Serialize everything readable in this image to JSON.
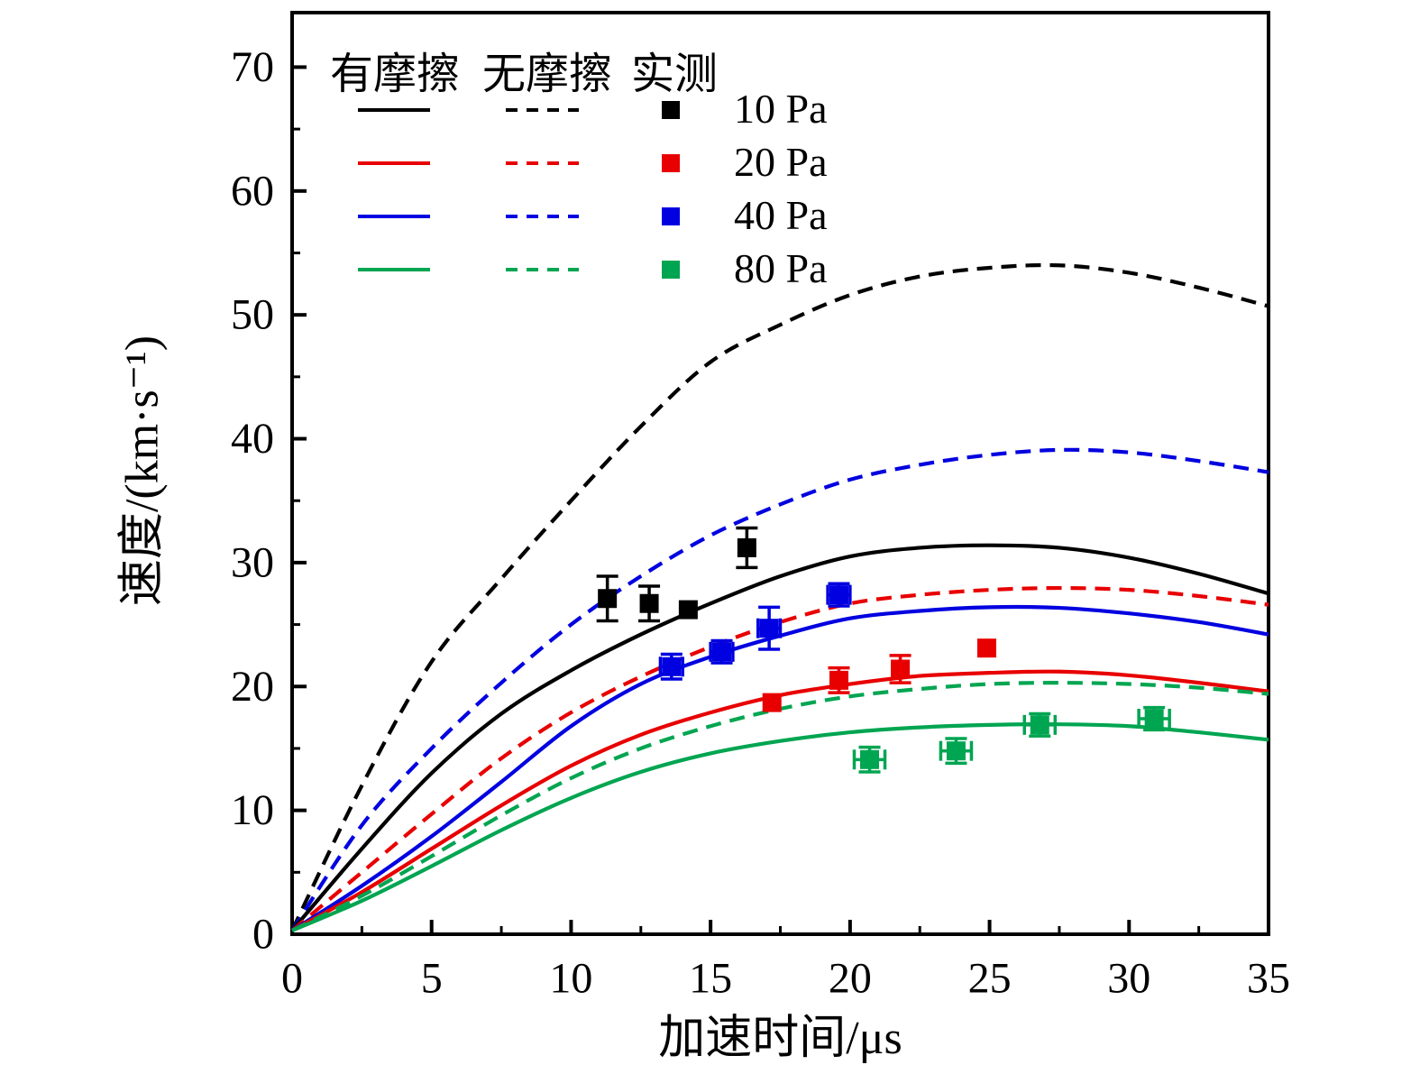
{
  "chart_data": {
    "type": "line",
    "title": "",
    "xlabel": "加速时间/μs",
    "ylabel": "速度/(km·s⁻¹)",
    "xlim": [
      0,
      35
    ],
    "ylim": [
      0,
      74.4
    ],
    "xticks": [
      0,
      5,
      10,
      15,
      20,
      25,
      30,
      35
    ],
    "yticks": [
      0,
      10,
      20,
      30,
      40,
      50,
      60,
      70
    ],
    "xminor_step": 2.5,
    "yminor_step": 5,
    "grid": false,
    "tick_direction": "in",
    "legend": {
      "position": "top-left-inside",
      "headers": [
        "有摩擦",
        "无摩擦",
        "实测"
      ],
      "entries": [
        {
          "label": "10 Pa",
          "color": "#000000"
        },
        {
          "label": "20 Pa",
          "color": "#e80000"
        },
        {
          "label": "40 Pa",
          "color": "#0000e0"
        },
        {
          "label": "80 Pa",
          "color": "#00a551"
        }
      ]
    },
    "t_samples": [
      0,
      2.5,
      5,
      7.5,
      10,
      12.5,
      15,
      17.5,
      20,
      22.5,
      25,
      27.5,
      30,
      32.5,
      35
    ],
    "series": [
      {
        "id": "10pa-nofriction",
        "pressure": "10 Pa",
        "friction": false,
        "style": "dashed",
        "color": "#000000",
        "values": [
          0.3,
          12.0,
          22.0,
          28.7,
          35.0,
          41.0,
          46.2,
          49.2,
          51.6,
          53.1,
          53.8,
          54.0,
          53.4,
          52.2,
          50.7
        ]
      },
      {
        "id": "40pa-nofriction",
        "pressure": "40 Pa",
        "friction": false,
        "style": "dashed",
        "color": "#0000e0",
        "values": [
          0.3,
          8.8,
          15.0,
          20.3,
          25.0,
          28.9,
          32.2,
          34.7,
          36.7,
          37.9,
          38.7,
          39.1,
          38.9,
          38.2,
          37.3
        ]
      },
      {
        "id": "10pa-friction",
        "pressure": "10 Pa",
        "friction": true,
        "style": "solid",
        "color": "#000000",
        "values": [
          0.3,
          6.9,
          13.0,
          17.8,
          21.3,
          24.2,
          26.7,
          28.9,
          30.5,
          31.2,
          31.4,
          31.2,
          30.4,
          29.1,
          27.5
        ]
      },
      {
        "id": "20pa-nofriction",
        "pressure": "20 Pa",
        "friction": false,
        "style": "dashed",
        "color": "#e80000",
        "values": [
          0.3,
          5.0,
          9.7,
          14.2,
          17.9,
          20.8,
          23.2,
          25.2,
          26.7,
          27.4,
          27.8,
          27.95,
          27.8,
          27.3,
          26.6
        ]
      },
      {
        "id": "40pa-friction",
        "pressure": "40 Pa",
        "friction": true,
        "style": "solid",
        "color": "#0000e0",
        "values": [
          0.3,
          3.9,
          7.9,
          12.3,
          16.8,
          20.2,
          22.4,
          24.1,
          25.5,
          26.1,
          26.4,
          26.35,
          25.9,
          25.2,
          24.2
        ]
      },
      {
        "id": "20pa-friction",
        "pressure": "20 Pa",
        "friction": true,
        "style": "solid",
        "color": "#e80000",
        "values": [
          0.3,
          3.4,
          6.9,
          10.4,
          13.6,
          16.1,
          17.9,
          19.3,
          20.2,
          20.85,
          21.1,
          21.2,
          20.9,
          20.3,
          19.6
        ]
      },
      {
        "id": "80pa-nofriction",
        "pressure": "80 Pa",
        "friction": false,
        "style": "dashed",
        "color": "#00a551",
        "values": [
          0.3,
          3.1,
          6.3,
          9.6,
          12.6,
          15.0,
          16.8,
          18.2,
          19.2,
          19.8,
          20.2,
          20.3,
          20.2,
          19.9,
          19.4
        ]
      },
      {
        "id": "80pa-friction",
        "pressure": "80 Pa",
        "friction": true,
        "style": "solid",
        "color": "#00a551",
        "values": [
          0.3,
          2.7,
          5.5,
          8.4,
          11.0,
          13.1,
          14.6,
          15.6,
          16.3,
          16.7,
          16.9,
          16.95,
          16.8,
          16.3,
          15.7
        ]
      }
    ],
    "measured_points": [
      {
        "pressure": "10 Pa",
        "color": "#000000",
        "points": [
          {
            "t": 11.3,
            "v": 27.1,
            "ev": 1.8,
            "et": 0
          },
          {
            "t": 12.8,
            "v": 26.7,
            "ev": 1.4,
            "et": 0
          },
          {
            "t": 14.2,
            "v": 26.2,
            "ev": 0,
            "et": 0
          },
          {
            "t": 16.3,
            "v": 31.2,
            "ev": 1.6,
            "et": 0
          }
        ]
      },
      {
        "pressure": "20 Pa",
        "color": "#e80000",
        "points": [
          {
            "t": 17.2,
            "v": 18.7,
            "ev": 0,
            "et": 0
          },
          {
            "t": 19.6,
            "v": 20.5,
            "ev": 1.0,
            "et": 0
          },
          {
            "t": 21.8,
            "v": 21.4,
            "ev": 1.1,
            "et": 0
          },
          {
            "t": 24.9,
            "v": 23.1,
            "ev": 0,
            "et": 0
          }
        ]
      },
      {
        "pressure": "40 Pa",
        "color": "#0000e0",
        "points": [
          {
            "t": 13.6,
            "v": 21.6,
            "ev": 1.0,
            "et": 0.4
          },
          {
            "t": 15.4,
            "v": 22.8,
            "ev": 0.9,
            "et": 0.4
          },
          {
            "t": 17.1,
            "v": 24.7,
            "ev": 1.7,
            "et": 0.4
          },
          {
            "t": 19.6,
            "v": 27.4,
            "ev": 0.9,
            "et": 0.4
          }
        ]
      },
      {
        "pressure": "80 Pa",
        "color": "#00a551",
        "points": [
          {
            "t": 20.7,
            "v": 14.1,
            "ev": 1.0,
            "et": 0.55
          },
          {
            "t": 23.8,
            "v": 14.8,
            "ev": 1.0,
            "et": 0.55
          },
          {
            "t": 26.8,
            "v": 16.9,
            "ev": 0.9,
            "et": 0.55
          },
          {
            "t": 30.9,
            "v": 17.4,
            "ev": 0.9,
            "et": 0.55
          }
        ]
      }
    ]
  }
}
